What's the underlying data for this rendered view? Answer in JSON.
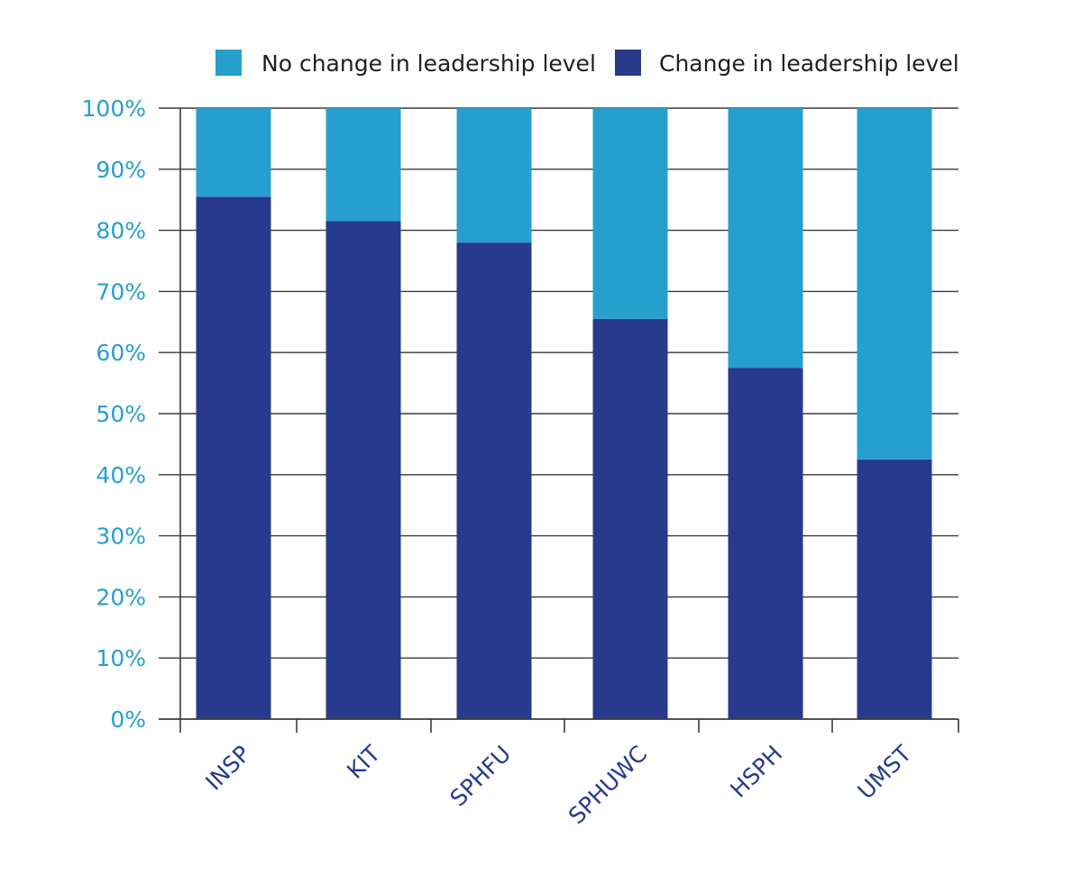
{
  "chart_data": {
    "type": "bar",
    "stacked": true,
    "title": "",
    "xlabel": "",
    "ylabel": "",
    "categories": [
      "INSP",
      "KIT",
      "SPHFU",
      "SPHUWC",
      "HSPH",
      "UMST"
    ],
    "series": [
      {
        "name": "Change in leadership level",
        "color": "#283a8b",
        "values": [
          85.5,
          81.5,
          78,
          65.5,
          57.5,
          42.5
        ]
      },
      {
        "name": "No change in leadership level",
        "color": "#279fcd",
        "values": [
          14.5,
          18.5,
          22,
          34.5,
          42.5,
          57.5
        ]
      }
    ],
    "legend": {
      "placement": "top",
      "order": [
        "No change in leadership level",
        "Change in leadership level"
      ]
    },
    "ylim": [
      0,
      100
    ],
    "yticks": [
      0,
      10,
      20,
      30,
      40,
      50,
      60,
      70,
      80,
      90,
      100
    ],
    "ytick_labels": [
      "0%",
      "10%",
      "20%",
      "30%",
      "40%",
      "50%",
      "60%",
      "70%",
      "80%",
      "90%",
      "100%"
    ],
    "grid": true,
    "colors": {
      "ytick_text": "#279fcd",
      "xtick_text": "#283a8b",
      "grid": "#3a3a3a",
      "axis": "#3a3a3a"
    }
  }
}
